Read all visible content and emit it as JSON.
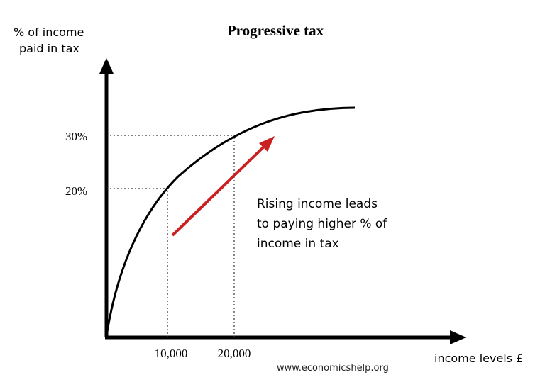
{
  "chart_data": {
    "type": "line",
    "title": "Progressive tax",
    "ylabel_line1": "% of income",
    "ylabel_line2": "paid in tax",
    "xlabel": "income levels £",
    "x_ticks": [
      "10,000",
      "20,000"
    ],
    "y_ticks": [
      "20%",
      "30%"
    ],
    "annotation_lines": [
      "Rising income leads",
      "to paying higher % of",
      "income in tax"
    ],
    "source": "www.economicshelp.org",
    "reference_points": [
      {
        "x": 10000,
        "y": 20
      },
      {
        "x": 20000,
        "y": 30
      }
    ],
    "curve_color": "#000000",
    "arrow_color": "#cc1f1f",
    "grid": false
  }
}
